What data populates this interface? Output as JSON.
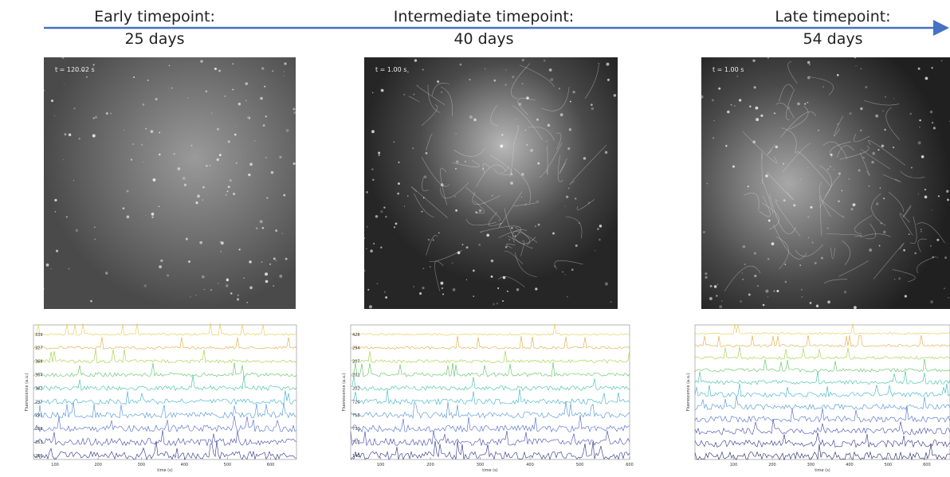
{
  "panels": [
    {
      "heading": "Early timepoint:",
      "days": "25 days",
      "timestamp": "t = 120.02 s",
      "trace_plot": {
        "y_labels": [
          "339",
          "327",
          "368",
          "364",
          "362",
          "297",
          "291",
          "288",
          "263",
          "236"
        ],
        "x_ticks": [
          100,
          200,
          300,
          400,
          500,
          600
        ],
        "xlim": [
          50,
          660
        ],
        "x_label": "time (s)",
        "y_label": "Fluorescence (a.u.)"
      }
    },
    {
      "heading": "Intermediate timepoint:",
      "days": "40 days",
      "timestamp": "t = 1.00 s",
      "trace_plot": {
        "y_labels": [
          "428",
          "294",
          "207",
          "201",
          "202",
          "720",
          "718",
          "733",
          "717",
          "141"
        ],
        "x_ticks": [
          100,
          200,
          300,
          400,
          500,
          600
        ],
        "xlim": [
          40,
          600
        ],
        "x_label": "time (s)",
        "y_label": "Fluorescence (a.u.)"
      }
    },
    {
      "heading": "Late timepoint:",
      "days": "54 days",
      "timestamp": "t = 1.00 s",
      "trace_plot": {
        "x_ticks": [
          100,
          200,
          300,
          400,
          500,
          600
        ],
        "xlim": [
          0,
          660
        ],
        "x_label": "time (s)",
        "y_label": "Fluorescence (a.u.)"
      }
    }
  ]
}
